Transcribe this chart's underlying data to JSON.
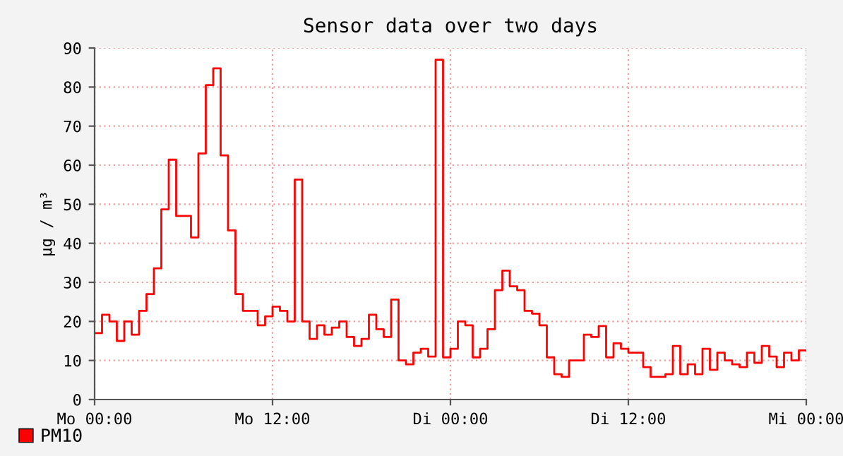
{
  "chart_data": {
    "type": "step",
    "title": "Sensor data over two days",
    "ylabel": "µg / m³",
    "categories": [
      "Mo 00:00",
      null,
      null,
      null,
      null,
      null,
      null,
      null,
      null,
      null,
      null,
      null,
      null,
      null,
      null,
      null,
      null,
      null,
      null,
      null,
      null,
      null,
      null,
      null,
      "Mo 12:00",
      null,
      null,
      null,
      null,
      null,
      null,
      null,
      null,
      null,
      null,
      null,
      null,
      null,
      null,
      null,
      null,
      null,
      null,
      null,
      null,
      null,
      null,
      null,
      "Di 00:00",
      null,
      null,
      null,
      null,
      null,
      null,
      null,
      null,
      null,
      null,
      null,
      null,
      null,
      null,
      null,
      null,
      null,
      null,
      null,
      null,
      null,
      null,
      null,
      "Di 12:00",
      null,
      null,
      null,
      null,
      null,
      null,
      null,
      null,
      null,
      null,
      null,
      null,
      null,
      null,
      null,
      null,
      null,
      null,
      null,
      null,
      null,
      null,
      null,
      "Mi 00:00"
    ],
    "series": [
      {
        "name": "PM10",
        "color": "#ff0000",
        "values": [
          17,
          21.7,
          20,
          15,
          20,
          16.6,
          22.7,
          27,
          33.6,
          48.7,
          61.4,
          47,
          47,
          41.5,
          63,
          80.5,
          84.8,
          62.5,
          43.3,
          27,
          22.7,
          22.7,
          19,
          21.3,
          23.8,
          22.7,
          20,
          56.3,
          20,
          15.5,
          19,
          16.6,
          18.4,
          20,
          16,
          13.7,
          15.5,
          21.7,
          18,
          16,
          25.6,
          10,
          9,
          12,
          13,
          11,
          87,
          10.8,
          13,
          20,
          19,
          10.8,
          13,
          18,
          28,
          33,
          29,
          28,
          22.7,
          22,
          19,
          10.8,
          6.5,
          5.8,
          10,
          10,
          16.6,
          16,
          18.8,
          10.8,
          14.4,
          13,
          12,
          12,
          8.3,
          5.8,
          5.8,
          6.5,
          13.7,
          6.5,
          9,
          6.5,
          13,
          7.6,
          12,
          10,
          9,
          8.3,
          12,
          9.4,
          13.7,
          11,
          8.3,
          12,
          10,
          12.6,
          12.6
        ]
      }
    ],
    "ylim": [
      0,
      90
    ],
    "yticks": [
      0,
      10,
      20,
      30,
      40,
      50,
      60,
      70,
      80,
      90
    ],
    "grid": true,
    "legend": "bottom left"
  }
}
